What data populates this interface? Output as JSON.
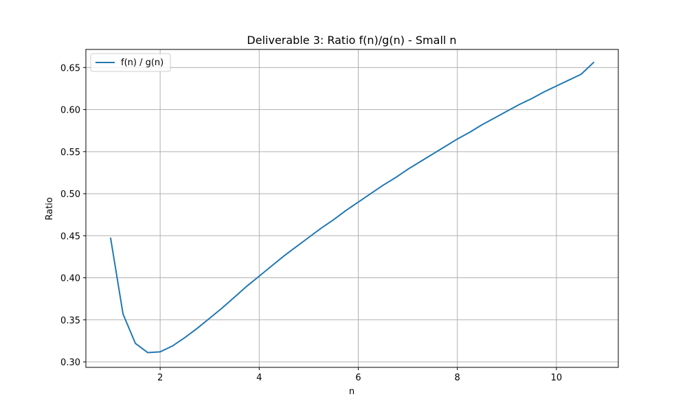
{
  "chart_data": {
    "type": "line",
    "title": "Deliverable 3: Ratio f(n)/g(n) - Small n",
    "xlabel": "n",
    "ylabel": "Ratio",
    "xlim": [
      0.5,
      11.25
    ],
    "ylim": [
      0.2935,
      0.6715
    ],
    "xticks": [
      2,
      4,
      6,
      8,
      10
    ],
    "yticks": [
      0.3,
      0.35,
      0.4,
      0.45,
      0.5,
      0.55,
      0.6,
      0.65
    ],
    "xtick_labels": [
      "2",
      "4",
      "6",
      "8",
      "10"
    ],
    "ytick_labels": [
      "0.30",
      "0.35",
      "0.40",
      "0.45",
      "0.50",
      "0.55",
      "0.60",
      "0.65"
    ],
    "grid": true,
    "legend_position": "top-left",
    "series": [
      {
        "name": "f(n) / g(n)",
        "color": "#1f77b4",
        "x": [
          1.0,
          1.25,
          1.5,
          1.75,
          2.0,
          2.25,
          2.5,
          2.75,
          3.0,
          3.25,
          3.5,
          3.75,
          4.0,
          4.25,
          4.5,
          4.75,
          5.0,
          5.25,
          5.5,
          5.75,
          6.0,
          6.25,
          6.5,
          6.75,
          7.0,
          7.25,
          7.5,
          7.75,
          8.0,
          8.25,
          8.5,
          8.75,
          9.0,
          9.25,
          9.5,
          9.75,
          10.0,
          10.25,
          10.5,
          10.75
        ],
        "y": [
          0.447,
          0.357,
          0.322,
          0.311,
          0.312,
          0.319,
          0.329,
          0.34,
          0.352,
          0.364,
          0.377,
          0.39,
          0.402,
          0.414,
          0.426,
          0.437,
          0.448,
          0.459,
          0.469,
          0.48,
          0.49,
          0.5,
          0.51,
          0.519,
          0.529,
          0.538,
          0.547,
          0.556,
          0.565,
          0.573,
          0.582,
          0.59,
          0.598,
          0.606,
          0.613,
          0.621,
          0.628,
          0.635,
          0.642,
          0.656
        ]
      }
    ]
  }
}
